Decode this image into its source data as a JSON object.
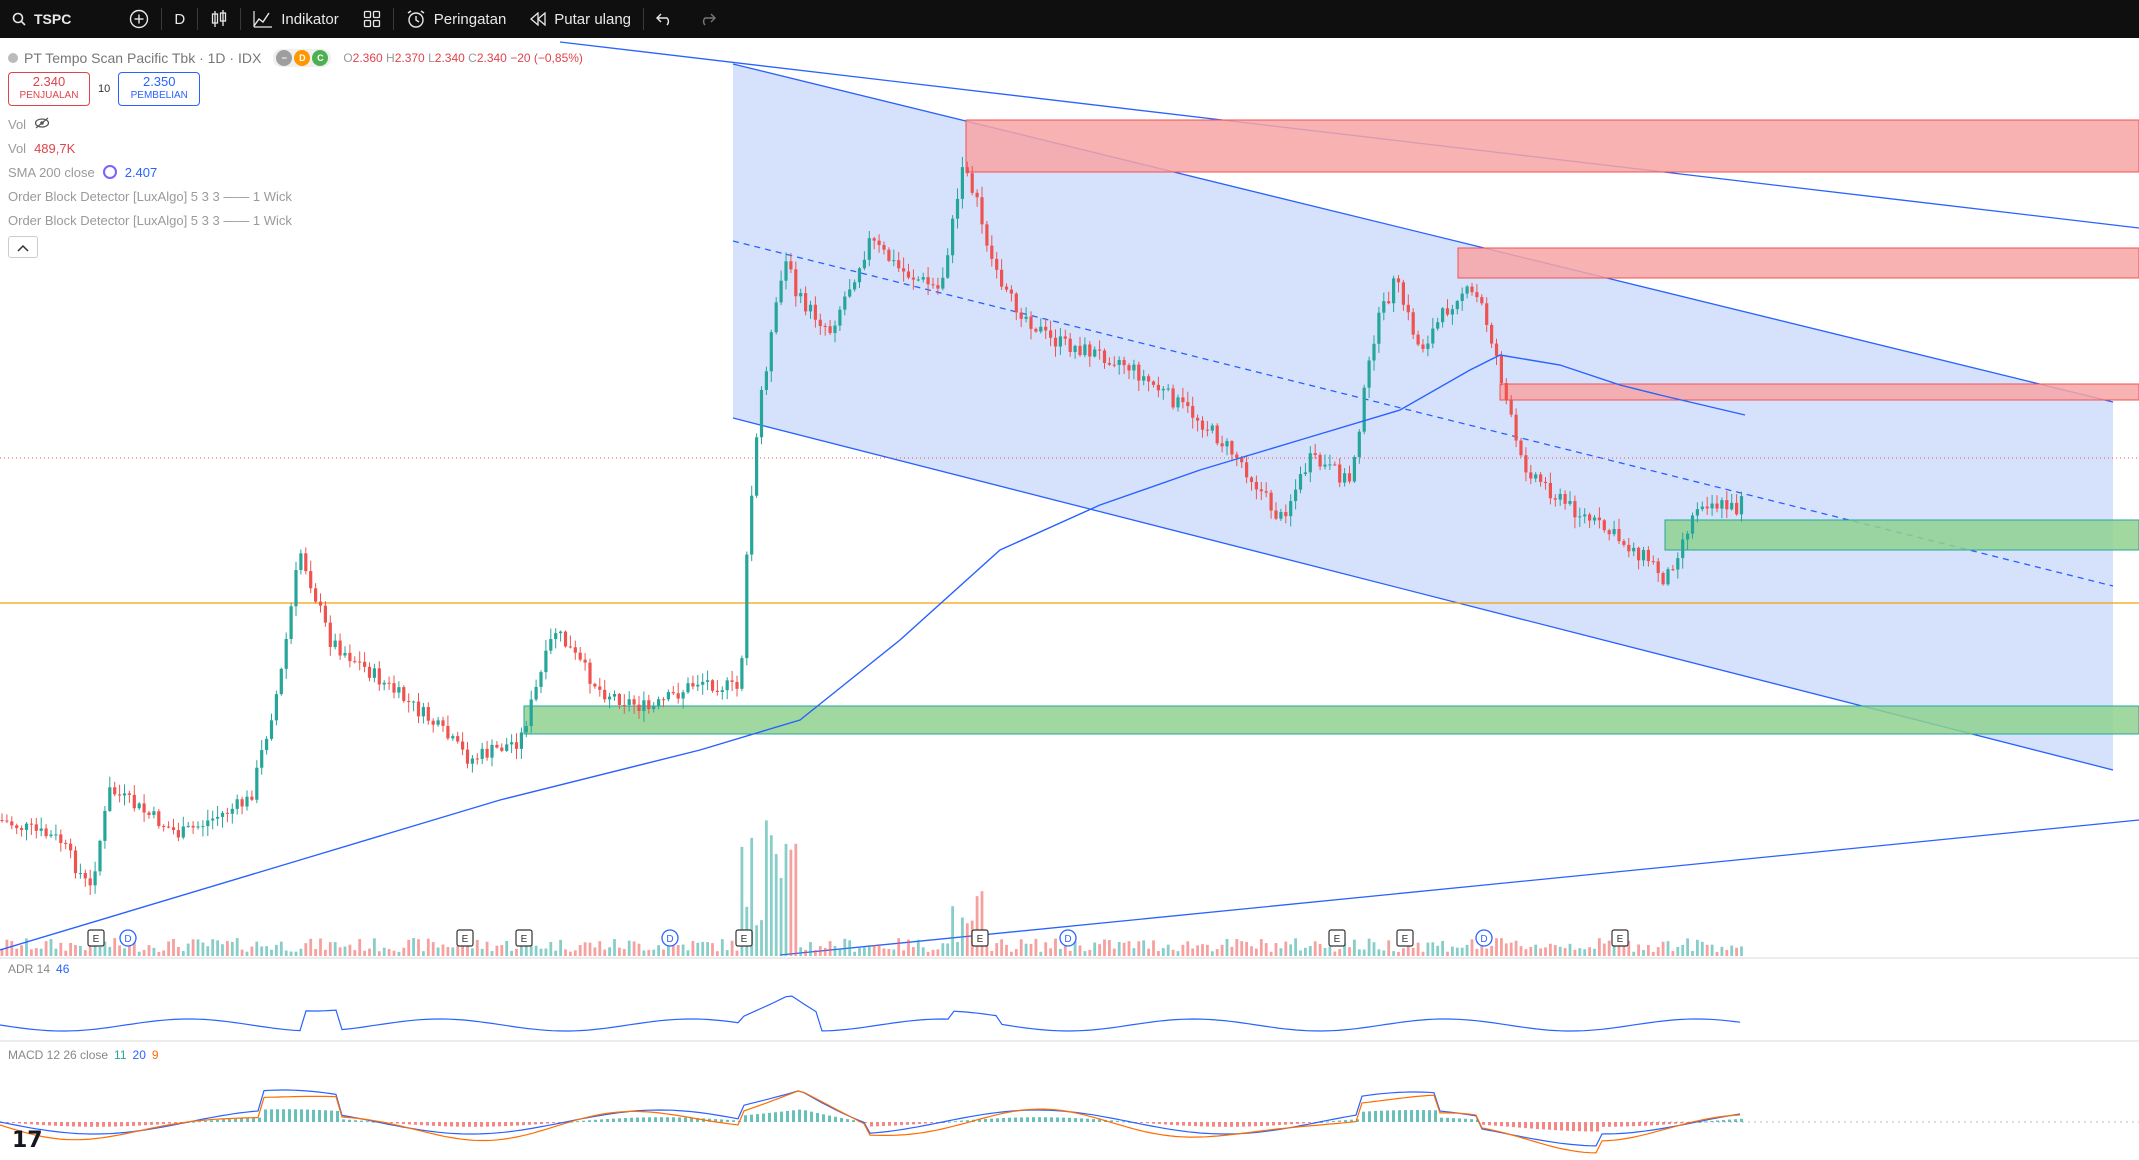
{
  "toolbar": {
    "symbol": "TSPC",
    "interval": "D",
    "indicators_label": "Indikator",
    "alerts_label": "Peringatan",
    "replay_label": "Putar ulang"
  },
  "legend": {
    "title": "PT Tempo Scan Pacific Tbk · 1D · IDX",
    "ohlc": {
      "o_label": "O",
      "o": "2.360",
      "h_label": "H",
      "h": "2.370",
      "l_label": "L",
      "l": "2.340",
      "c_label": "C",
      "c": "2.340",
      "change": "−20 (−0,85%)"
    },
    "sell_price": "2.340",
    "sell_label": "PENJUALAN",
    "spread": "10",
    "buy_price": "2.350",
    "buy_label": "PEMBELIAN"
  },
  "indicators": {
    "vol_label": "Vol",
    "vol2_label": "Vol",
    "vol2_value": "489,7K",
    "sma_label": "SMA 200 close",
    "sma_value": "2.407",
    "ob1_label": "Order Block Detector [LuxAlgo] 5 3 3 —— 1 Wick",
    "ob2_label": "Order Block Detector [LuxAlgo] 5 3 3 —— 1 Wick"
  },
  "adr": {
    "label": "ADR 14",
    "value": "46"
  },
  "macd": {
    "label": "MACD 12 26 close",
    "v1": "11",
    "v2": "20",
    "v3": "9"
  },
  "events": [
    "E",
    "D",
    "E",
    "E",
    "D",
    "E",
    "E",
    "D",
    "E",
    "E",
    "D",
    "E"
  ],
  "colors": {
    "up": "#26a69a",
    "down": "#ef5350",
    "sma": "#2962ff",
    "channel": "#2962ff",
    "channel_fill": "#cfdcfb",
    "bear_block": "#f7a4a4",
    "bull_block": "#8fd18f",
    "support": "#f0a30a"
  },
  "chart_data": {
    "type": "candlestick",
    "series": [
      {
        "name": "TSPC",
        "values": []
      }
    ]
  }
}
